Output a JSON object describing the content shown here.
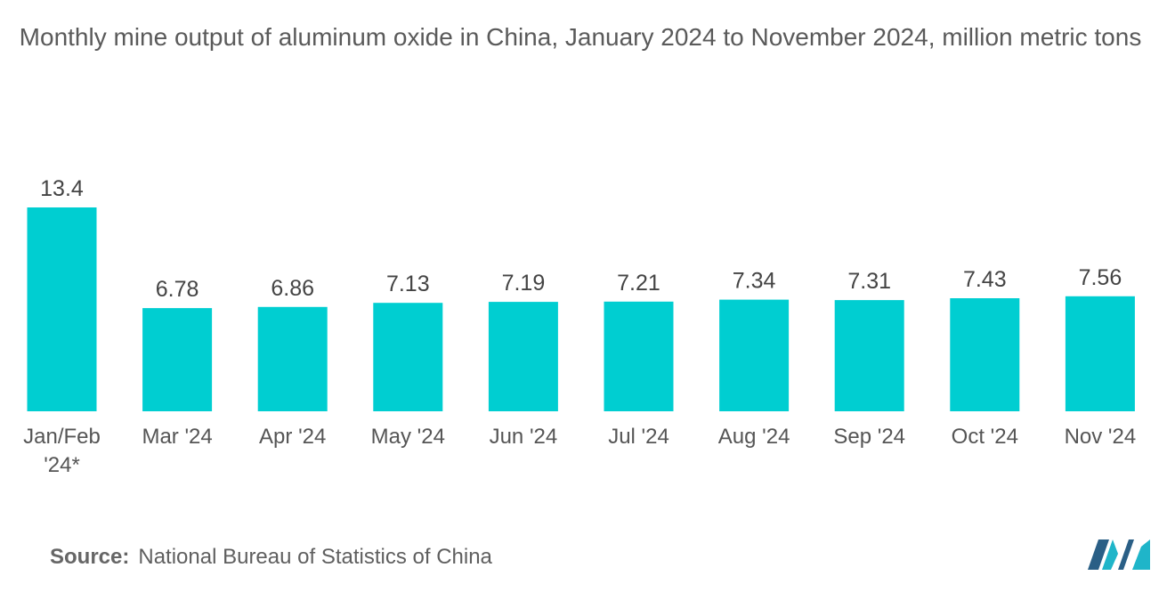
{
  "title": "Monthly mine output of aluminum oxide in China, January 2024 to November 2024, million metric tons",
  "source": {
    "label": "Source:",
    "text": "National Bureau of Statistics of China"
  },
  "colors": {
    "bar": "#00CED1",
    "text": "#555555",
    "logo_dark": "#2a5f86",
    "logo_light": "#1fb5c9"
  },
  "chart_data": {
    "type": "bar",
    "title": "Monthly mine output of aluminum oxide in China, January 2024 to November 2024, million metric tons",
    "categories": [
      [
        "Jan/Feb",
        "'24*"
      ],
      [
        "Mar '24"
      ],
      [
        "Apr '24"
      ],
      [
        "May '24"
      ],
      [
        "Jun '24"
      ],
      [
        "Jul '24"
      ],
      [
        "Aug '24"
      ],
      [
        "Sep '24"
      ],
      [
        "Oct '24"
      ],
      [
        "Nov '24"
      ]
    ],
    "values": [
      13.4,
      6.78,
      6.86,
      7.13,
      7.19,
      7.21,
      7.34,
      7.31,
      7.43,
      7.56
    ],
    "value_labels": [
      "13.4",
      "6.78",
      "6.86",
      "7.13",
      "7.19",
      "7.21",
      "7.34",
      "7.31",
      "7.43",
      "7.56"
    ],
    "xlabel": "",
    "ylabel": "",
    "ylim": [
      0,
      13.4
    ],
    "grid": false,
    "legend": "none"
  }
}
